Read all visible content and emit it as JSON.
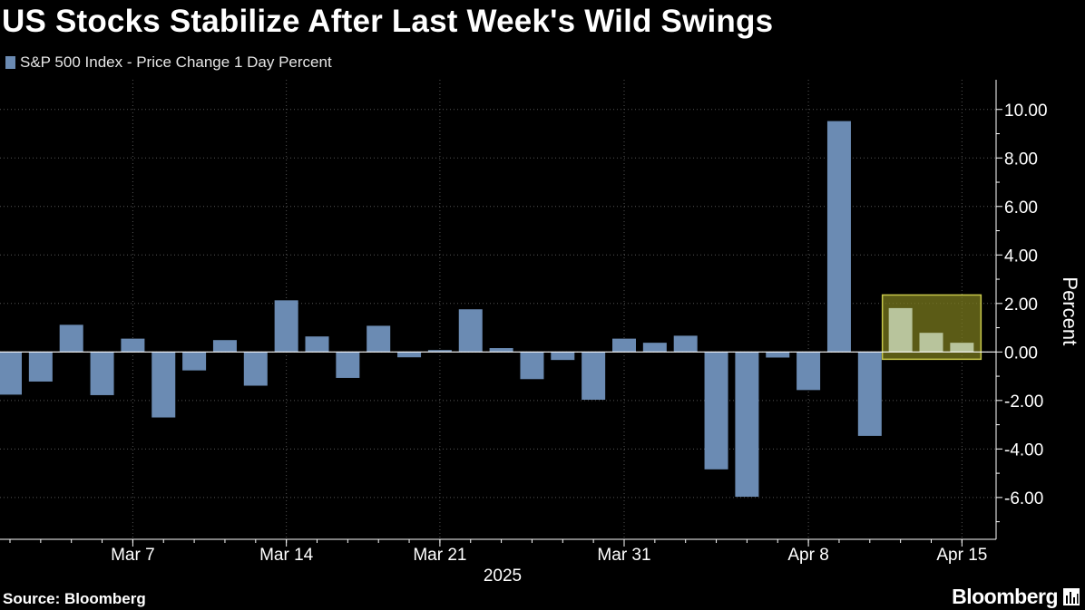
{
  "header": {
    "title": "US Stocks Stabilize After Last Week's Wild Swings"
  },
  "legend": {
    "label": "S&P 500 Index - Price Change 1 Day Percent"
  },
  "footer": {
    "source": "Source: Bloomberg",
    "brand": "Bloomberg"
  },
  "colors": {
    "background": "#000000",
    "bar": "#6b8bb3",
    "bar_highlight": "#b8c49c",
    "highlight_fill": "#7a7a1e",
    "highlight_stroke": "#c8c84a",
    "grid": "#555555",
    "text": "#ffffff"
  },
  "chart_data": {
    "type": "bar",
    "title": "US Stocks Stabilize After Last Week's Wild Swings",
    "ylabel": "Percent",
    "xlabel": "2025",
    "ylim": [
      -7.5,
      11.0
    ],
    "yticks": [
      10,
      8,
      6,
      4,
      2,
      0,
      -2,
      -4,
      -6
    ],
    "ytick_labels": [
      "10.00",
      "8.00",
      "6.00",
      "4.00",
      "2.00",
      "0.00",
      "-2.00",
      "-4.00",
      "-6.00"
    ],
    "x_tick_labels": [
      "Mar 7",
      "Mar 14",
      "Mar 21",
      "Mar 31",
      "Apr 8",
      "Apr 15"
    ],
    "x_tick_dates": [
      "2025-03-07",
      "2025-03-14",
      "2025-03-21",
      "2025-03-31",
      "2025-04-08",
      "2025-04-15"
    ],
    "grid": true,
    "legend_position": "top-left",
    "highlighted_dates": [
      "2025-04-11",
      "2025-04-14",
      "2025-04-15"
    ],
    "series": [
      {
        "name": "S&P 500 Index - Price Change 1 Day Percent",
        "dates": [
          "2025-03-03",
          "2025-03-04",
          "2025-03-05",
          "2025-03-06",
          "2025-03-07",
          "2025-03-10",
          "2025-03-11",
          "2025-03-12",
          "2025-03-13",
          "2025-03-14",
          "2025-03-17",
          "2025-03-18",
          "2025-03-19",
          "2025-03-20",
          "2025-03-21",
          "2025-03-24",
          "2025-03-25",
          "2025-03-26",
          "2025-03-27",
          "2025-03-28",
          "2025-03-31",
          "2025-04-01",
          "2025-04-02",
          "2025-04-03",
          "2025-04-04",
          "2025-04-07",
          "2025-04-08",
          "2025-04-09",
          "2025-04-10",
          "2025-04-11",
          "2025-04-14",
          "2025-04-15"
        ],
        "values": [
          -1.76,
          -1.22,
          1.12,
          -1.78,
          0.55,
          -2.7,
          -0.76,
          0.49,
          -1.39,
          2.13,
          0.64,
          -1.07,
          1.08,
          -0.22,
          0.08,
          1.76,
          0.16,
          -1.12,
          -0.33,
          -1.97,
          0.55,
          0.38,
          0.67,
          -4.84,
          -5.97,
          -0.23,
          -1.57,
          9.52,
          -3.46,
          1.81,
          0.79,
          0.38
        ]
      }
    ]
  }
}
